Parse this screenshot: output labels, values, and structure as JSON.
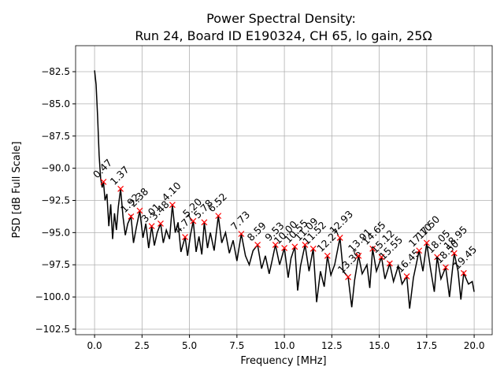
{
  "chart_data": {
    "type": "line",
    "title": "Power Spectral Density:",
    "subtitle": "Run 24, Board ID E190324, CH 65, lo gain, 25Ω",
    "x_label": "Frequency [MHz]",
    "y_label": "PSD [dB Full Scale]",
    "xlim": [
      -1.0,
      20.95
    ],
    "ylim": [
      -102.93,
      -80.48
    ],
    "xticks": [
      {
        "value": 0,
        "label": "0.0"
      },
      {
        "value": 2.5,
        "label": "2.5"
      },
      {
        "value": 5,
        "label": "5.0"
      },
      {
        "value": 7.5,
        "label": "7.5"
      },
      {
        "value": 10,
        "label": "10.0"
      },
      {
        "value": 12.5,
        "label": "12.5"
      },
      {
        "value": 15,
        "label": "15.0"
      },
      {
        "value": 17.5,
        "label": "17.5"
      },
      {
        "value": 20,
        "label": "20.0"
      }
    ],
    "yticks": [
      {
        "value": -82.5,
        "label": "−82.5"
      },
      {
        "value": -85,
        "label": "−85.0"
      },
      {
        "value": -87.5,
        "label": "−87.5"
      },
      {
        "value": -90,
        "label": "−90.0"
      },
      {
        "value": -92.5,
        "label": "−92.5"
      },
      {
        "value": -95,
        "label": "−95.0"
      },
      {
        "value": -97.5,
        "label": "−97.5"
      },
      {
        "value": -100,
        "label": "−100.0"
      },
      {
        "value": -102.5,
        "label": "−102.5"
      }
    ],
    "grid": true,
    "series": [
      {
        "kind": "line",
        "color": "#000000",
        "x": [
          0,
          0.08,
          0.16,
          0.24,
          0.32,
          0.4,
          0.47,
          0.55,
          0.65,
          0.75,
          0.85,
          0.95,
          1.05,
          1.15,
          1.25,
          1.37,
          1.5,
          1.62,
          1.75,
          1.92,
          2.05,
          2.2,
          2.38,
          2.55,
          2.7,
          2.85,
          3.01,
          3.15,
          3.3,
          3.48,
          3.62,
          3.78,
          3.95,
          4.1,
          4.25,
          4.4,
          4.55,
          4.77,
          4.9,
          5.05,
          5.2,
          5.35,
          5.5,
          5.65,
          5.78,
          5.95,
          6.1,
          6.3,
          6.52,
          6.7,
          6.9,
          7.1,
          7.3,
          7.5,
          7.73,
          7.95,
          8.15,
          8.35,
          8.59,
          8.8,
          9,
          9.2,
          9.35,
          9.53,
          9.75,
          10,
          10.2,
          10.35,
          10.55,
          10.7,
          10.85,
          11.09,
          11.3,
          11.52,
          11.7,
          11.9,
          12.1,
          12.27,
          12.45,
          12.65,
          12.93,
          13.1,
          13.36,
          13.55,
          13.7,
          13.91,
          14.1,
          14.35,
          14.5,
          14.65,
          14.85,
          15.12,
          15.3,
          15.55,
          15.75,
          16,
          16.2,
          16.45,
          16.6,
          16.8,
          17.1,
          17.3,
          17.5,
          17.7,
          17.9,
          18.05,
          18.25,
          18.5,
          18.7,
          18.95,
          19.15,
          19.3,
          19.45,
          19.7,
          19.9,
          20
        ],
        "values": [
          -82.4,
          -83.5,
          -86,
          -89,
          -90.8,
          -91.5,
          -91.06,
          -92.5,
          -92,
          -94.5,
          -92.8,
          -95.5,
          -93.5,
          -94.8,
          -93,
          -91.6,
          -93.8,
          -95.2,
          -94.3,
          -93.75,
          -95.8,
          -94.6,
          -93.3,
          -95.4,
          -94.3,
          -96.2,
          -94.5,
          -96,
          -95,
          -94.3,
          -95.8,
          -94.8,
          -95.5,
          -92.85,
          -95,
          -94.2,
          -96.5,
          -95.35,
          -96.8,
          -95.2,
          -94.1,
          -96.5,
          -95.3,
          -96.7,
          -94.2,
          -96.2,
          -95,
          -96.4,
          -93.7,
          -95.8,
          -95,
          -96.6,
          -95.6,
          -97.2,
          -95.1,
          -96.8,
          -97.5,
          -96.4,
          -95.95,
          -97.8,
          -96.8,
          -98.2,
          -97.2,
          -95.95,
          -97.5,
          -96.2,
          -98.5,
          -97,
          -96.1,
          -99.5,
          -97.6,
          -95.95,
          -98,
          -96.25,
          -100.4,
          -98,
          -99.2,
          -96.8,
          -98.3,
          -97.5,
          -95.4,
          -98,
          -98.45,
          -100.8,
          -98.7,
          -96.8,
          -98.2,
          -97.5,
          -99.3,
          -96.25,
          -98,
          -96.9,
          -98.6,
          -97.4,
          -98.8,
          -97.6,
          -99,
          -98.4,
          -100.9,
          -98.5,
          -96.4,
          -98,
          -95.8,
          -97.8,
          -99.6,
          -96.9,
          -98.6,
          -97.7,
          -100,
          -96.6,
          -98,
          -100.2,
          -98.15,
          -99,
          -98.8,
          -99.6
        ]
      },
      {
        "kind": "peaks",
        "color": "#ff0000",
        "x": [
          0.47,
          1.37,
          1.92,
          2.38,
          3.01,
          3.48,
          4.1,
          4.77,
          5.2,
          5.78,
          6.52,
          7.73,
          8.59,
          9.53,
          10,
          10.55,
          11.09,
          11.52,
          12.27,
          12.93,
          13.36,
          13.91,
          14.65,
          15.12,
          15.55,
          16.45,
          17.1,
          17.5,
          18.05,
          18.5,
          18.95,
          19.45
        ],
        "values": [
          -91.06,
          -91.6,
          -93.75,
          -93.3,
          -94.5,
          -94.3,
          -92.85,
          -95.35,
          -94.1,
          -94.2,
          -93.7,
          -95.1,
          -95.95,
          -95.95,
          -96.2,
          -96.1,
          -95.95,
          -96.25,
          -96.8,
          -95.4,
          -98.45,
          -96.8,
          -96.25,
          -96.9,
          -97.4,
          -98.4,
          -96.4,
          -95.8,
          -96.9,
          -97.7,
          -96.6,
          -98.15
        ],
        "value_labels": [
          "0.47",
          "1.37",
          "1.92",
          "2.38",
          "3.01",
          "3.48",
          "4.10",
          "4.77",
          "5.20",
          "5.78",
          "6.52",
          "7.73",
          "8.59",
          "9.53",
          "10.00",
          "10.55",
          "11.09",
          "11.52",
          "12.27",
          "12.93",
          "13.36",
          "13.91",
          "14.65",
          "15.12",
          "15.55",
          "16.45",
          "17.10",
          "17.50",
          "18.05",
          "18.50",
          "18.95",
          "19.45"
        ]
      }
    ]
  }
}
